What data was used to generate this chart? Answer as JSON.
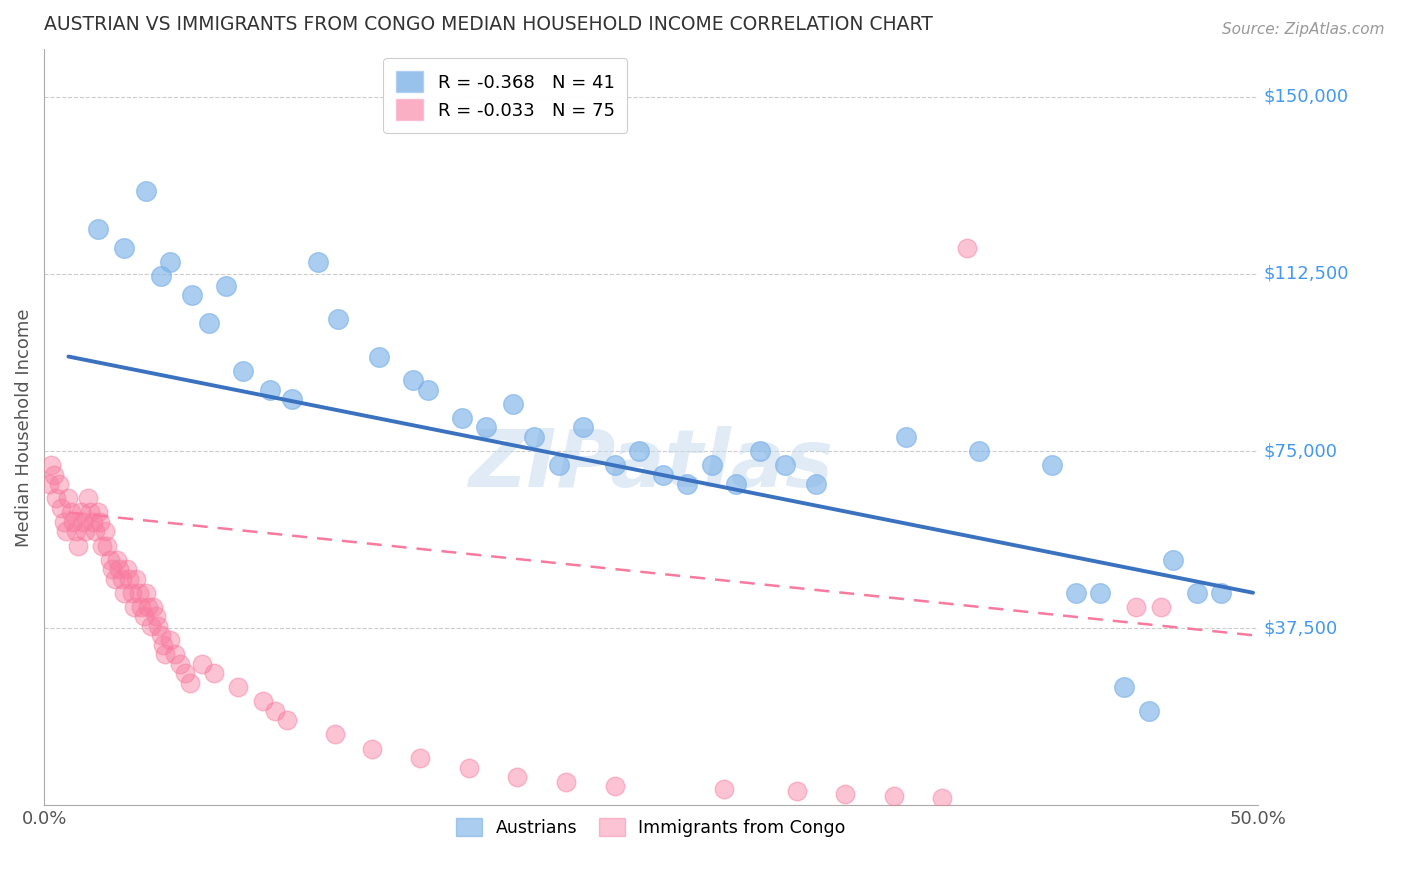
{
  "title": "AUSTRIAN VS IMMIGRANTS FROM CONGO MEDIAN HOUSEHOLD INCOME CORRELATION CHART",
  "source": "Source: ZipAtlas.com",
  "ylabel": "Median Household Income",
  "xlim": [
    0,
    0.5
  ],
  "ylim": [
    0,
    160000
  ],
  "yticks": [
    0,
    37500,
    75000,
    112500,
    150000
  ],
  "ytick_labels": [
    "",
    "$37,500",
    "$75,000",
    "$112,500",
    "$150,000"
  ],
  "xticks": [
    0.0,
    0.5
  ],
  "xtick_labels": [
    "0.0%",
    "50.0%"
  ],
  "blue_color": "#7EB3E8",
  "pink_color": "#F87A9E",
  "trend_blue": "#3A72C0",
  "trend_pink": "#F87A9E",
  "watermark": "ZIPatlas",
  "legend_R_blue": "-0.368",
  "legend_N_blue": "41",
  "legend_R_pink": "-0.033",
  "legend_N_pink": "75",
  "blue_scatter_x": [
    0.022,
    0.033,
    0.042,
    0.048,
    0.052,
    0.061,
    0.068,
    0.075,
    0.082,
    0.093,
    0.102,
    0.113,
    0.121,
    0.138,
    0.152,
    0.158,
    0.172,
    0.182,
    0.193,
    0.202,
    0.212,
    0.222,
    0.235,
    0.245,
    0.255,
    0.265,
    0.275,
    0.285,
    0.295,
    0.305,
    0.318,
    0.355,
    0.385,
    0.415,
    0.425,
    0.435,
    0.445,
    0.455,
    0.465,
    0.475,
    0.485
  ],
  "blue_scatter_y": [
    122000,
    118000,
    130000,
    112000,
    115000,
    108000,
    102000,
    110000,
    92000,
    88000,
    86000,
    115000,
    103000,
    95000,
    90000,
    88000,
    82000,
    80000,
    85000,
    78000,
    72000,
    80000,
    72000,
    75000,
    70000,
    68000,
    72000,
    68000,
    75000,
    72000,
    68000,
    78000,
    75000,
    72000,
    45000,
    45000,
    25000,
    20000,
    52000,
    45000,
    45000
  ],
  "pink_scatter_x": [
    0.002,
    0.003,
    0.004,
    0.005,
    0.006,
    0.007,
    0.008,
    0.009,
    0.01,
    0.011,
    0.012,
    0.013,
    0.014,
    0.015,
    0.016,
    0.017,
    0.018,
    0.019,
    0.02,
    0.021,
    0.022,
    0.023,
    0.024,
    0.025,
    0.026,
    0.027,
    0.028,
    0.029,
    0.03,
    0.031,
    0.032,
    0.033,
    0.034,
    0.035,
    0.036,
    0.037,
    0.038,
    0.039,
    0.04,
    0.041,
    0.042,
    0.043,
    0.044,
    0.045,
    0.046,
    0.047,
    0.048,
    0.049,
    0.05,
    0.052,
    0.054,
    0.056,
    0.058,
    0.06,
    0.065,
    0.07,
    0.08,
    0.09,
    0.095,
    0.1,
    0.12,
    0.135,
    0.155,
    0.175,
    0.195,
    0.215,
    0.235,
    0.28,
    0.31,
    0.33,
    0.35,
    0.37,
    0.38,
    0.45,
    0.46
  ],
  "pink_scatter_y": [
    68000,
    72000,
    70000,
    65000,
    68000,
    63000,
    60000,
    58000,
    65000,
    62000,
    60000,
    58000,
    55000,
    62000,
    60000,
    58000,
    65000,
    62000,
    60000,
    58000,
    62000,
    60000,
    55000,
    58000,
    55000,
    52000,
    50000,
    48000,
    52000,
    50000,
    48000,
    45000,
    50000,
    48000,
    45000,
    42000,
    48000,
    45000,
    42000,
    40000,
    45000,
    42000,
    38000,
    42000,
    40000,
    38000,
    36000,
    34000,
    32000,
    35000,
    32000,
    30000,
    28000,
    26000,
    30000,
    28000,
    25000,
    22000,
    20000,
    18000,
    15000,
    12000,
    10000,
    8000,
    6000,
    5000,
    4000,
    3500,
    3000,
    2500,
    2000,
    1500,
    118000,
    42000,
    42000
  ],
  "blue_trend_x": [
    0.01,
    0.498
  ],
  "blue_trend_y": [
    95000,
    45000
  ],
  "pink_trend_x": [
    0.01,
    0.498
  ],
  "pink_trend_y": [
    62000,
    36000
  ],
  "background_color": "#FFFFFF",
  "grid_color": "#CCCCCC",
  "title_color": "#333333",
  "axis_label_color": "#555555",
  "ytick_color": "#4499EE",
  "xtick_color": "#555555",
  "source_color": "#999999"
}
